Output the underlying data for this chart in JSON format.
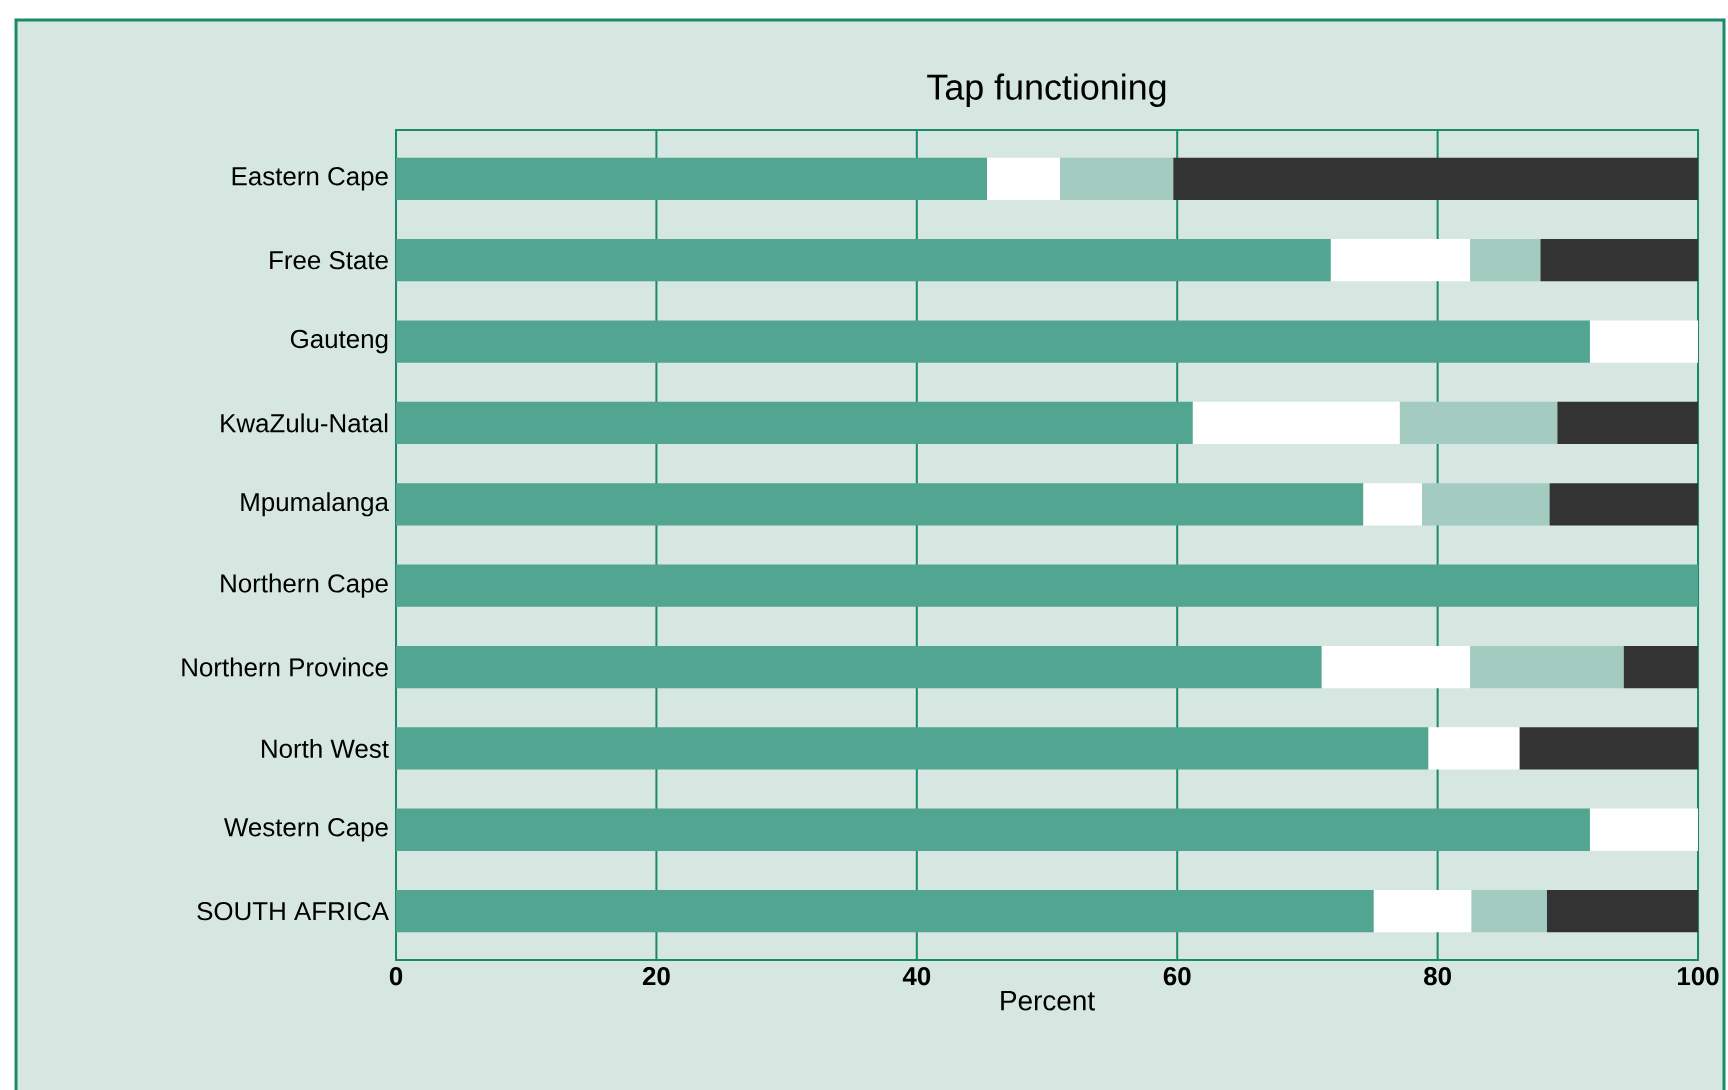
{
  "chart_data": {
    "type": "bar",
    "orientation": "horizontal",
    "stacked": true,
    "title": "Tap functioning",
    "xlabel": "Percent",
    "categories": [
      "Eastern Cape",
      "Free State",
      "Gauteng",
      "KwaZulu-Natal",
      "Mpumalanga",
      "Northern Cape",
      "Northern Province",
      "North West",
      "Western Cape",
      "SOUTH AFRICA"
    ],
    "series": [
      {
        "color": "#52a590",
        "values": [
          45.4,
          71.8,
          91.7,
          61.2,
          74.3,
          100,
          71.1,
          79.3,
          91.7,
          75.1
        ]
      },
      {
        "color": "#ffffff",
        "values": [
          5.6,
          10.7,
          8.3,
          15.9,
          4.5,
          null,
          11.4,
          7.0,
          8.3,
          7.5
        ]
      },
      {
        "color": "#a3cbbf",
        "values": [
          8.7,
          5.4,
          null,
          12.1,
          9.8,
          null,
          11.8,
          null,
          null,
          5.8
        ]
      },
      {
        "color": "#333333",
        "values": [
          40.3,
          12.1,
          null,
          10.8,
          11.4,
          null,
          5.7,
          13.7,
          null,
          11.6
        ]
      }
    ],
    "xlim": [
      0,
      100
    ],
    "xticks": [
      0,
      20,
      40,
      60,
      80,
      100
    ],
    "grid": "x"
  }
}
